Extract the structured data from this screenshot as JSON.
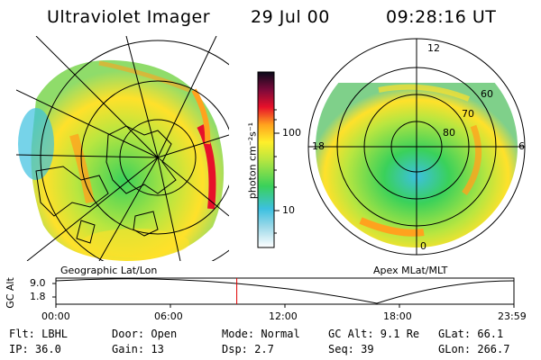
{
  "header": {
    "instrument": "Ultraviolet Imager",
    "date": "29 Jul 00",
    "time": "09:28:16 UT"
  },
  "geo_panel": {
    "caption": "Geographic Lat/Lon"
  },
  "apex_panel": {
    "caption": "Apex MLat/MLT",
    "mlt_labels": {
      "top": "12",
      "left": "18",
      "right": "6",
      "bottom": "0"
    },
    "mlat_labels": [
      "60",
      "70",
      "80"
    ]
  },
  "colorbar": {
    "unit_label": "photon cm⁻²s⁻¹",
    "tick_100": "100",
    "tick_10": "10"
  },
  "orbit": {
    "ylabel": "GC Alt",
    "ytick_high": "9.0",
    "ytick_low": "1.8",
    "xticks": [
      "00:00",
      "06:00",
      "12:00",
      "18:00",
      "23:59"
    ],
    "marker_time_hours": 9.47
  },
  "info": {
    "filter": "Flt: LBHL",
    "ip": "IP: 36.0",
    "door": "Door: Open",
    "gain": "Gain: 13",
    "mode": "Mode: Normal",
    "dsp": "Dsp:     2.7",
    "gc_alt": "GC Alt: 9.1 Re",
    "seq": "Seq: 39",
    "glat": "GLat:  66.1",
    "glon": "GLon: 266.7"
  },
  "colors": {
    "low": "#ffffff",
    "cyan": "#3cc0e0",
    "green": "#3ad15a",
    "yellowgreen": "#b8e640",
    "yellow": "#ffef2a",
    "orange": "#ffa21e",
    "red": "#e7102a",
    "darkred": "#7a0a3a",
    "top": "#0a0a1a",
    "marker": "#e00000"
  }
}
